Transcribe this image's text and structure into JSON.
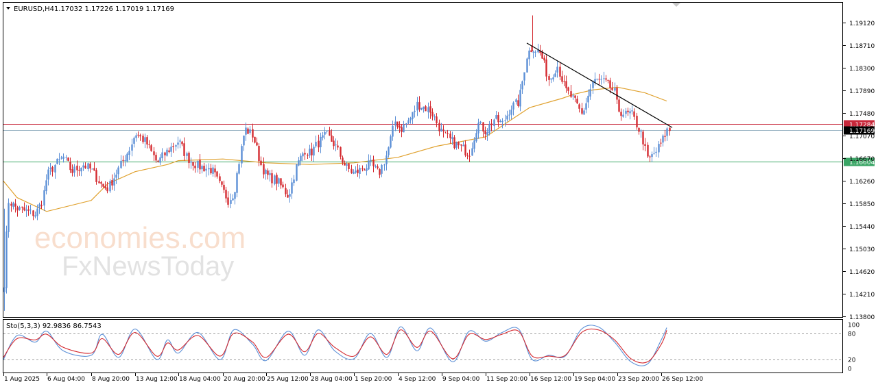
{
  "window": {
    "symbol_title": "EURUSD,H4",
    "ohlc_values": "1.17032 1.17226 1.17019 1.17169"
  },
  "watermark": {
    "line1": "economies.com",
    "line2": "FxNewsToday"
  },
  "colors": {
    "bull": "#5b8fd6",
    "bear": "#d4292f",
    "ma": "#e0a12e",
    "trendline": "#000000",
    "resistance": "#c8273a",
    "support": "#3aa565",
    "stoch_main": "#5b8fd6",
    "stoch_signal": "#d4292f"
  },
  "chart_data": [
    {
      "type": "candlestick",
      "symbol": "EURUSD",
      "timeframe": "H4",
      "y_ticks": [
        "1.19120",
        "1.18710",
        "1.18300",
        "1.17890",
        "1.17480",
        "1.17070",
        "1.16670",
        "1.16260",
        "1.15850",
        "1.15440",
        "1.15030",
        "1.14620",
        "1.14210",
        "1.13800"
      ],
      "ylim": [
        1.138,
        1.1945
      ],
      "x_ticks": [
        "1 Aug 2025",
        "6 Aug 04:00",
        "8 Aug 20:00",
        "13 Aug 12:00",
        "18 Aug 04:00",
        "20 Aug 20:00",
        "25 Aug 12:00",
        "28 Aug 04:00",
        "1 Sep 20:00",
        "4 Sep 12:00",
        "9 Sep 04:00",
        "11 Sep 20:00",
        "16 Sep 12:00",
        "19 Sep 04:00",
        "23 Sep 20:00",
        "26 Sep 12:00"
      ],
      "horizontal_levels": [
        {
          "value": 1.17284,
          "label": "1.17284",
          "role": "resistance"
        },
        {
          "value": 1.17169,
          "label": "1.17169",
          "role": "current_price"
        },
        {
          "value": 1.16604,
          "label": "1.16604",
          "role": "support"
        }
      ],
      "trendline": {
        "from": {
          "date": "16 Sep 08:00",
          "price": 1.1875
        },
        "to": {
          "date": "29 Sep 04:00",
          "price": 1.1722
        }
      },
      "close_path": [
        [
          "1 Aug 2025",
          1.1415
        ],
        [
          "1 Aug 08:00",
          1.159
        ],
        [
          "4 Aug 2025",
          1.1575
        ],
        [
          "5 Aug 08:00",
          1.1565
        ],
        [
          "5 Aug 20:00",
          1.159
        ],
        [
          "6 Aug 04:00",
          1.1635
        ],
        [
          "6 Aug 16:00",
          1.1655
        ],
        [
          "7 Aug 04:00",
          1.1668
        ],
        [
          "7 Aug 16:00",
          1.1642
        ],
        [
          "8 Aug 08:00",
          1.1655
        ],
        [
          "8 Aug 20:00",
          1.1645
        ],
        [
          "11 Aug 12:00",
          1.1615
        ],
        [
          "11 Aug 20:00",
          1.1612
        ],
        [
          "12 Aug 12:00",
          1.1648
        ],
        [
          "13 Aug 04:00",
          1.1685
        ],
        [
          "13 Aug 12:00",
          1.1712
        ],
        [
          "14 Aug 04:00",
          1.1695
        ],
        [
          "14 Aug 20:00",
          1.1658
        ],
        [
          "15 Aug 12:00",
          1.168
        ],
        [
          "18 Aug 04:00",
          1.1698
        ],
        [
          "18 Aug 16:00",
          1.1668
        ],
        [
          "19 Aug 08:00",
          1.1652
        ],
        [
          "20 Aug 04:00",
          1.1645
        ],
        [
          "20 Aug 16:00",
          1.1615
        ],
        [
          "21 Aug 04:00",
          1.159
        ],
        [
          "21 Aug 12:00",
          1.1605
        ],
        [
          "22 Aug 04:00",
          1.172
        ],
        [
          "22 Aug 16:00",
          1.1708
        ],
        [
          "25 Aug 04:00",
          1.1655
        ],
        [
          "25 Aug 12:00",
          1.1635
        ],
        [
          "26 Aug 04:00",
          1.1625
        ],
        [
          "26 Aug 20:00",
          1.1598
        ],
        [
          "27 Aug 08:00",
          1.1652
        ],
        [
          "27 Aug 20:00",
          1.1682
        ],
        [
          "28 Aug 04:00",
          1.1675
        ],
        [
          "28 Aug 16:00",
          1.1695
        ],
        [
          "29 Aug 04:00",
          1.1708
        ],
        [
          "29 Aug 16:00",
          1.169
        ],
        [
          "1 Sep 08:00",
          1.165
        ],
        [
          "1 Sep 20:00",
          1.1638
        ],
        [
          "2 Sep 08:00",
          1.1648
        ],
        [
          "2 Sep 20:00",
          1.1655
        ],
        [
          "3 Sep 08:00",
          1.1638
        ],
        [
          "3 Sep 20:00",
          1.1675
        ],
        [
          "4 Sep 08:00",
          1.1735
        ],
        [
          "4 Sep 16:00",
          1.1718
        ],
        [
          "5 Sep 08:00",
          1.1742
        ],
        [
          "5 Sep 16:00",
          1.1765
        ],
        [
          "8 Sep 12:00",
          1.1752
        ],
        [
          "9 Sep 04:00",
          1.1712
        ],
        [
          "9 Sep 20:00",
          1.1695
        ],
        [
          "10 Sep 08:00",
          1.1685
        ],
        [
          "10 Sep 20:00",
          1.1675
        ],
        [
          "11 Sep 08:00",
          1.173
        ],
        [
          "11 Sep 20:00",
          1.1715
        ],
        [
          "12 Sep 08:00",
          1.1738
        ],
        [
          "12 Sep 20:00",
          1.1728
        ],
        [
          "15 Sep 08:00",
          1.1758
        ],
        [
          "15 Sep 20:00",
          1.1768
        ],
        [
          "16 Sep 08:00",
          1.1855
        ],
        [
          "16 Sep 16:00",
          1.1868
        ],
        [
          "17 Sep 04:00",
          1.1855
        ],
        [
          "17 Sep 16:00",
          1.1808
        ],
        [
          "18 Sep 04:00",
          1.1835
        ],
        [
          "18 Sep 16:00",
          1.179
        ],
        [
          "19 Sep 04:00",
          1.1772
        ],
        [
          "19 Sep 16:00",
          1.1745
        ],
        [
          "22 Sep 08:00",
          1.1805
        ],
        [
          "22 Sep 16:00",
          1.1808
        ],
        [
          "23 Sep 04:00",
          1.1802
        ],
        [
          "23 Sep 16:00",
          1.1785
        ],
        [
          "23 Sep 20:00",
          1.1755
        ],
        [
          "24 Sep 08:00",
          1.1745
        ],
        [
          "24 Sep 16:00",
          1.1748
        ],
        [
          "25 Sep 08:00",
          1.1705
        ],
        [
          "25 Sep 16:00",
          1.1662
        ],
        [
          "26 Sep 04:00",
          1.1678
        ],
        [
          "26 Sep 12:00",
          1.1695
        ],
        [
          "26 Sep 20:00",
          1.1717
        ]
      ],
      "moving_average": [
        [
          "1 Aug 2025",
          1.1625
        ],
        [
          "4 Aug 2025",
          1.1595
        ],
        [
          "6 Aug 04:00",
          1.157
        ],
        [
          "8 Aug 20:00",
          1.159
        ],
        [
          "11 Aug 20:00",
          1.162
        ],
        [
          "13 Aug 12:00",
          1.1642
        ],
        [
          "15 Aug 12:00",
          1.1655
        ],
        [
          "18 Aug 04:00",
          1.1662
        ],
        [
          "20 Aug 20:00",
          1.1665
        ],
        [
          "25 Aug 12:00",
          1.1658
        ],
        [
          "28 Aug 04:00",
          1.1655
        ],
        [
          "1 Sep 20:00",
          1.1658
        ],
        [
          "4 Sep 12:00",
          1.1668
        ],
        [
          "8 Sep 20:00",
          1.1688
        ],
        [
          "11 Sep 20:00",
          1.1705
        ],
        [
          "15 Sep 08:00",
          1.1735
        ],
        [
          "16 Sep 12:00",
          1.1758
        ],
        [
          "18 Sep 12:00",
          1.1775
        ],
        [
          "19 Sep 04:00",
          1.1782
        ],
        [
          "22 Sep 08:00",
          1.179
        ],
        [
          "23 Sep 20:00",
          1.1795
        ],
        [
          "25 Sep 12:00",
          1.1785
        ],
        [
          "26 Sep 20:00",
          1.177
        ]
      ]
    },
    {
      "type": "line",
      "indicator_label": "Sto(5,3,3) 92.9836 86.7543",
      "y_ticks": [
        "100",
        "80",
        "20",
        "0"
      ],
      "levels": [
        80,
        20
      ],
      "ylim": [
        0,
        100
      ],
      "series": [
        {
          "role": "main",
          "values": [
            [
              "1 Aug 2025",
              20
            ],
            [
              "4 Aug 2025",
              75
            ],
            [
              "5 Aug 08:00",
              60
            ],
            [
              "6 Aug 04:00",
              85
            ],
            [
              "7 Aug 04:00",
              40
            ],
            [
              "8 Aug 20:00",
              30
            ],
            [
              "11 Aug 12:00",
              78
            ],
            [
              "12 Aug 12:00",
              25
            ],
            [
              "13 Aug 12:00",
              90
            ],
            [
              "14 Aug 20:00",
              20
            ],
            [
              "15 Aug 12:00",
              65
            ],
            [
              "18 Aug 04:00",
              35
            ],
            [
              "19 Aug 08:00",
              82
            ],
            [
              "20 Aug 16:00",
              20
            ],
            [
              "21 Aug 12:00",
              88
            ],
            [
              "22 Aug 16:00",
              55
            ],
            [
              "25 Aug 12:00",
              18
            ],
            [
              "26 Aug 20:00",
              85
            ],
            [
              "27 Aug 20:00",
              30
            ],
            [
              "28 Aug 16:00",
              88
            ],
            [
              "29 Aug 16:00",
              40
            ],
            [
              "1 Sep 20:00",
              22
            ],
            [
              "2 Sep 20:00",
              80
            ],
            [
              "3 Sep 20:00",
              25
            ],
            [
              "4 Sep 16:00",
              95
            ],
            [
              "5 Sep 16:00",
              40
            ],
            [
              "8 Sep 12:00",
              92
            ],
            [
              "9 Sep 20:00",
              15
            ],
            [
              "10 Sep 20:00",
              85
            ],
            [
              "11 Sep 20:00",
              62
            ],
            [
              "12 Sep 20:00",
              82
            ],
            [
              "15 Sep 20:00",
              90
            ],
            [
              "16 Sep 16:00",
              20
            ],
            [
              "17 Sep 16:00",
              30
            ],
            [
              "18 Sep 16:00",
              28
            ],
            [
              "19 Sep 16:00",
              90
            ],
            [
              "22 Sep 16:00",
              95
            ],
            [
              "23 Sep 16:00",
              60
            ],
            [
              "24 Sep 16:00",
              15
            ],
            [
              "25 Sep 16:00",
              10
            ],
            [
              "26 Sep 12:00",
              65
            ],
            [
              "26 Sep 20:00",
              93
            ]
          ]
        },
        {
          "role": "signal",
          "values": [
            [
              "1 Aug 2025",
              25
            ],
            [
              "4 Aug 2025",
              68
            ],
            [
              "5 Aug 08:00",
              65
            ],
            [
              "6 Aug 04:00",
              78
            ],
            [
              "7 Aug 04:00",
              48
            ],
            [
              "8 Aug 20:00",
              35
            ],
            [
              "11 Aug 12:00",
              68
            ],
            [
              "12 Aug 12:00",
              32
            ],
            [
              "13 Aug 12:00",
              82
            ],
            [
              "14 Aug 20:00",
              28
            ],
            [
              "15 Aug 12:00",
              58
            ],
            [
              "18 Aug 04:00",
              42
            ],
            [
              "19 Aug 08:00",
              75
            ],
            [
              "20 Aug 16:00",
              28
            ],
            [
              "21 Aug 12:00",
              80
            ],
            [
              "22 Aug 16:00",
              60
            ],
            [
              "25 Aug 12:00",
              25
            ],
            [
              "26 Aug 20:00",
              78
            ],
            [
              "27 Aug 20:00",
              38
            ],
            [
              "28 Aug 16:00",
              80
            ],
            [
              "29 Aug 16:00",
              48
            ],
            [
              "1 Sep 20:00",
              28
            ],
            [
              "2 Sep 20:00",
              72
            ],
            [
              "3 Sep 20:00",
              32
            ],
            [
              "4 Sep 16:00",
              88
            ],
            [
              "5 Sep 16:00",
              48
            ],
            [
              "8 Sep 12:00",
              85
            ],
            [
              "9 Sep 20:00",
              22
            ],
            [
              "10 Sep 20:00",
              78
            ],
            [
              "11 Sep 20:00",
              66
            ],
            [
              "12 Sep 20:00",
              78
            ],
            [
              "15 Sep 20:00",
              85
            ],
            [
              "16 Sep 16:00",
              28
            ],
            [
              "17 Sep 16:00",
              28
            ],
            [
              "18 Sep 16:00",
              30
            ],
            [
              "19 Sep 16:00",
              82
            ],
            [
              "22 Sep 16:00",
              88
            ],
            [
              "23 Sep 16:00",
              65
            ],
            [
              "24 Sep 16:00",
              22
            ],
            [
              "25 Sep 16:00",
              15
            ],
            [
              "26 Sep 12:00",
              55
            ],
            [
              "26 Sep 20:00",
              87
            ]
          ]
        }
      ]
    }
  ]
}
